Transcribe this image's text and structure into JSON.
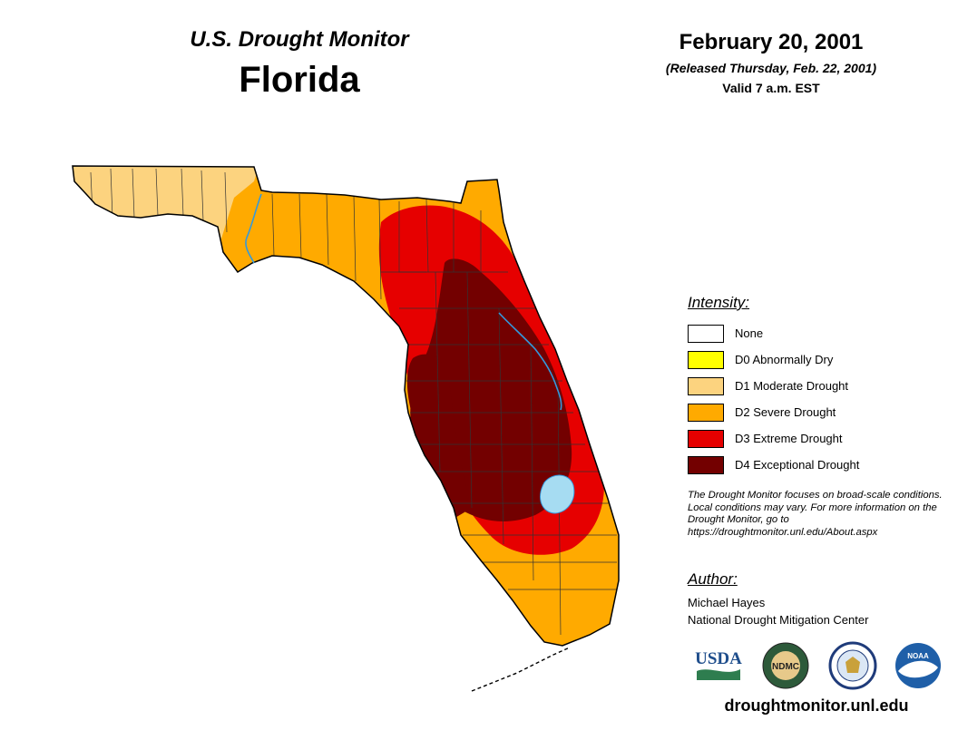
{
  "header": {
    "title": "U.S. Drought Monitor",
    "state": "Florida",
    "date": "February 20, 2001",
    "released": "(Released Thursday, Feb. 22, 2001)",
    "valid": "Valid 7 a.m. EST"
  },
  "legend": {
    "heading": "Intensity:",
    "items": [
      {
        "label": "None",
        "color": "#ffffff"
      },
      {
        "label": "D0 Abnormally Dry",
        "color": "#ffff00"
      },
      {
        "label": "D1 Moderate Drought",
        "color": "#fcd37f"
      },
      {
        "label": "D2 Severe Drought",
        "color": "#ffaa00"
      },
      {
        "label": "D3 Extreme Drought",
        "color": "#e60000"
      },
      {
        "label": "D4 Exceptional Drought",
        "color": "#730000"
      }
    ]
  },
  "note": "The Drought Monitor focuses on broad-scale conditions. Local conditions may vary. For more information on the Drought Monitor, go to https://droughtmonitor.unl.edu/About.aspx",
  "author": {
    "heading": "Author:",
    "name": "Michael Hayes",
    "organization": "National Drought Mitigation Center"
  },
  "logos": [
    {
      "name": "usda-logo",
      "text": "USDA"
    },
    {
      "name": "ndmc-logo",
      "text": "NDMC"
    },
    {
      "name": "doc-seal-logo",
      "text": ""
    },
    {
      "name": "noaa-logo",
      "text": "NOAA"
    }
  ],
  "website": "droughtmonitor.unl.edu",
  "map_colors": {
    "water": "#a6dcf2",
    "river": "#3399dd",
    "county_lines": "#333333"
  }
}
